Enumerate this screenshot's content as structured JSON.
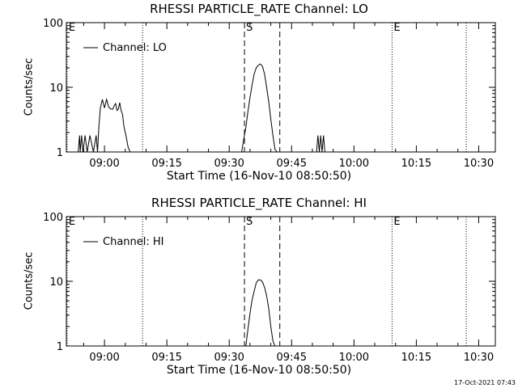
{
  "chart_data": [
    {
      "type": "line",
      "title": "RHESSI PARTICLE_RATE Channel: LO",
      "xlabel": "Start Time (16-Nov-10 08:50:50)",
      "ylabel": "Counts/sec",
      "yscale": "log",
      "ylim": [
        1,
        100
      ],
      "y_tick_labels": [
        "1",
        "10",
        "100"
      ],
      "x_tick_labels": [
        "09:00",
        "09:15",
        "09:30",
        "09:45",
        "10:00",
        "10:15",
        "10:30"
      ],
      "legend": "top-left",
      "series": [
        {
          "name": "Channel: LO",
          "x": [
            "08:53:40",
            "08:54:00",
            "08:54:10",
            "08:54:30",
            "08:54:50",
            "08:55:20",
            "08:55:50",
            "08:56:30",
            "08:57:20",
            "08:58:00",
            "08:58:20",
            "08:58:40",
            "08:59:00",
            "08:59:30",
            "09:00:00",
            "09:00:30",
            "09:01:00",
            "09:01:30",
            "09:02:00",
            "09:02:20",
            "09:02:40",
            "09:03:00",
            "09:03:20",
            "09:03:40",
            "09:04:00",
            "09:04:20",
            "09:04:40",
            "09:05:10",
            "09:05:40",
            "09:06:10",
            "09:06:30",
            "09:33:00",
            "09:33:30",
            "09:34:00",
            "09:34:30",
            "09:35:00",
            "09:35:30",
            "09:36:00",
            "09:36:30",
            "09:37:00",
            "09:37:30",
            "09:38:00",
            "09:38:30",
            "09:39:00",
            "09:39:30",
            "09:40:00",
            "09:40:30",
            "09:41:00",
            "09:41:30",
            "09:51:00",
            "09:51:20",
            "09:51:40",
            "09:52:00",
            "09:52:20",
            "09:52:40",
            "09:53:00"
          ],
          "y": [
            1,
            1.8,
            1,
            1.8,
            1,
            1.8,
            1,
            1.8,
            1,
            1.8,
            1,
            2.5,
            4.8,
            6.5,
            4.8,
            6.5,
            5,
            4.6,
            4.6,
            5.2,
            5.6,
            4.4,
            4.6,
            5.8,
            4.4,
            3.8,
            2.5,
            1.8,
            1.2,
            1,
            1,
            1,
            1.6,
            2.4,
            4.2,
            7,
            11,
            16,
            20,
            22,
            23,
            21,
            16,
            10,
            6,
            3.2,
            1.8,
            1.1,
            1,
            1,
            1.8,
            1,
            1.8,
            1,
            1.8,
            1
          ]
        }
      ],
      "annotations": [
        {
          "label": "E",
          "type": "dotted"
        },
        {
          "label": "",
          "type": "dotted"
        },
        {
          "label": "S",
          "type": "dashed"
        },
        {
          "label": "",
          "type": "dashed"
        },
        {
          "label": "E",
          "type": "dotted"
        },
        {
          "label": "",
          "type": "dotted"
        }
      ]
    },
    {
      "type": "line",
      "title": "RHESSI PARTICLE_RATE Channel: HI",
      "xlabel": "Start Time (16-Nov-10 08:50:50)",
      "ylabel": "Counts/sec",
      "yscale": "log",
      "ylim": [
        1,
        100
      ],
      "y_tick_labels": [
        "1",
        "10",
        "100"
      ],
      "x_tick_labels": [
        "09:00",
        "09:15",
        "09:30",
        "09:45",
        "10:00",
        "10:15",
        "10:30"
      ],
      "legend": "top-left",
      "series": [
        {
          "name": "Channel: HI",
          "x": [
            "09:34:00",
            "09:34:30",
            "09:35:00",
            "09:35:30",
            "09:36:00",
            "09:36:30",
            "09:37:00",
            "09:37:30",
            "09:38:00",
            "09:38:30",
            "09:39:00",
            "09:39:30",
            "09:40:00",
            "09:40:30",
            "09:41:00"
          ],
          "y": [
            1,
            1.8,
            3.2,
            5.2,
            7,
            9.5,
            10.5,
            10.5,
            9.8,
            8,
            6,
            3.8,
            2,
            1.2,
            1
          ]
        }
      ],
      "annotations": [
        {
          "label": "E",
          "type": "dotted"
        },
        {
          "label": "",
          "type": "dotted"
        },
        {
          "label": "S",
          "type": "dashed"
        },
        {
          "label": "",
          "type": "dashed"
        },
        {
          "label": "E",
          "type": "dotted"
        },
        {
          "label": "",
          "type": "dotted"
        }
      ]
    }
  ],
  "footer": {
    "timestamp": "17-Oct-2021 07:43"
  }
}
